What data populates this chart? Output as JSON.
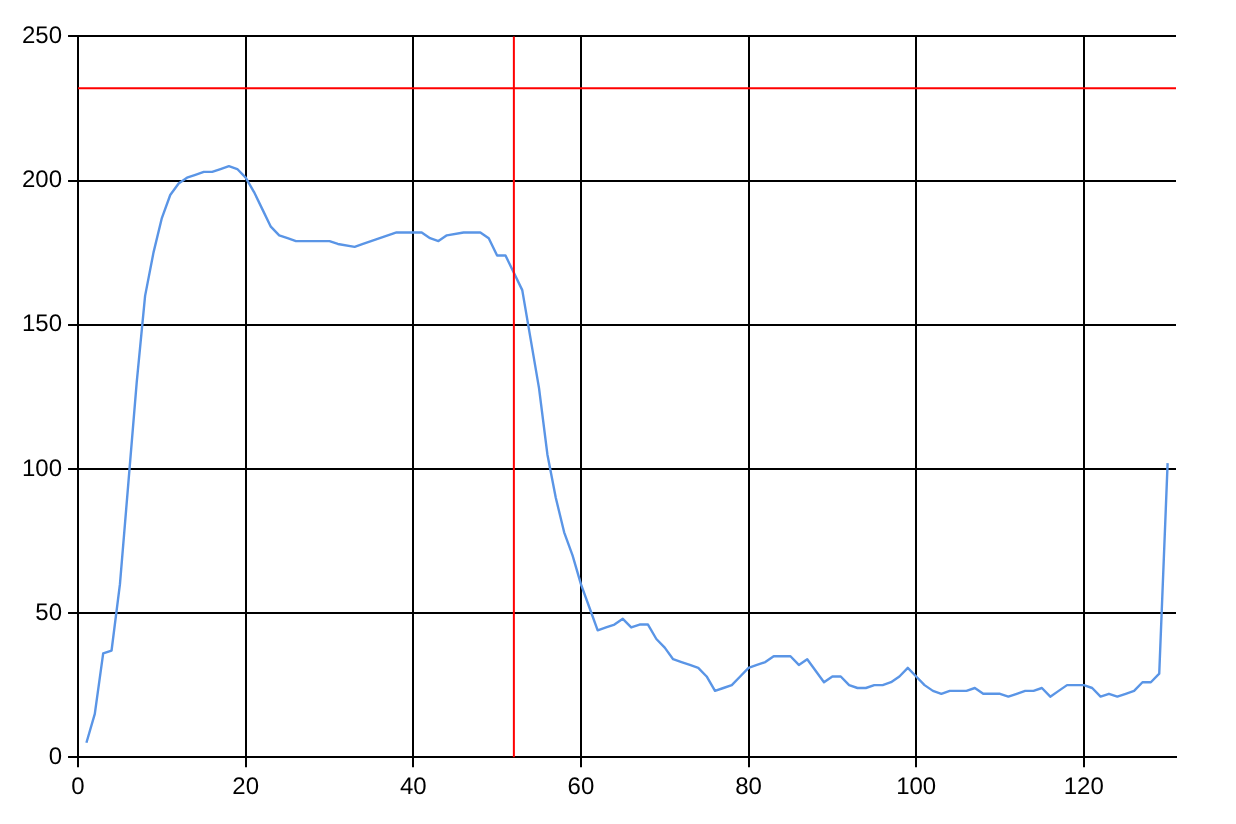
{
  "chart_data": {
    "type": "line",
    "x": [
      1,
      2,
      3,
      4,
      5,
      6,
      7,
      8,
      9,
      10,
      11,
      12,
      13,
      14,
      15,
      16,
      17,
      18,
      19,
      20,
      21,
      22,
      23,
      24,
      25,
      26,
      28,
      30,
      31,
      33,
      34,
      36,
      38,
      40,
      41,
      42,
      43,
      44,
      46,
      48,
      49,
      50,
      51,
      52,
      53,
      54,
      55,
      56,
      57,
      58,
      59,
      60,
      61,
      62,
      63,
      64,
      65,
      66,
      67,
      68,
      69,
      70,
      71,
      72,
      73,
      74,
      75,
      76,
      77,
      78,
      79,
      80,
      81,
      82,
      83,
      84,
      85,
      86,
      87,
      88,
      89,
      90,
      91,
      92,
      93,
      94,
      95,
      96,
      97,
      98,
      99,
      100,
      101,
      102,
      103,
      104,
      105,
      106,
      107,
      108,
      109,
      110,
      111,
      112,
      113,
      114,
      115,
      116,
      117,
      118,
      119,
      120,
      121,
      122,
      123,
      124,
      125,
      126,
      127,
      128,
      129,
      130
    ],
    "series": [
      {
        "color": "#5a95e6",
        "values": [
          5,
          15,
          36,
          37,
          60,
          95,
          130,
          160,
          175,
          187,
          195,
          199,
          201,
          202,
          203,
          203,
          204,
          205,
          204,
          201,
          196,
          190,
          184,
          181,
          180,
          179,
          179,
          179,
          178,
          177,
          178,
          180,
          182,
          182,
          182,
          180,
          179,
          181,
          182,
          182,
          180,
          174,
          174,
          168,
          162,
          145,
          128,
          105,
          90,
          78,
          70,
          60,
          52,
          44,
          45,
          46,
          48,
          45,
          46,
          46,
          41,
          38,
          34,
          33,
          32,
          31,
          28,
          23,
          24,
          25,
          28,
          31,
          32,
          33,
          35,
          35,
          35,
          32,
          34,
          30,
          26,
          28,
          28,
          25,
          24,
          24,
          25,
          25,
          26,
          28,
          31,
          28,
          25,
          23,
          22,
          23,
          23,
          23,
          24,
          22,
          22,
          22,
          21,
          22,
          23,
          23,
          24,
          21,
          23,
          25,
          25,
          25,
          24,
          21,
          22,
          21,
          22,
          23,
          26,
          26,
          29,
          102
        ]
      }
    ],
    "xlim": [
      0,
      131
    ],
    "xticks": [
      0,
      20,
      40,
      60,
      80,
      100,
      120
    ],
    "ylim": [
      0,
      250
    ],
    "yticks": [
      0,
      50,
      100,
      150,
      200,
      250
    ],
    "grid": true,
    "marker": "none",
    "line_style": "solid",
    "legend": false,
    "ref_lines": [
      {
        "axis": "y",
        "value": 232,
        "color": "#ff0000"
      },
      {
        "axis": "x",
        "value": 52,
        "color": "#ff0000"
      }
    ]
  }
}
